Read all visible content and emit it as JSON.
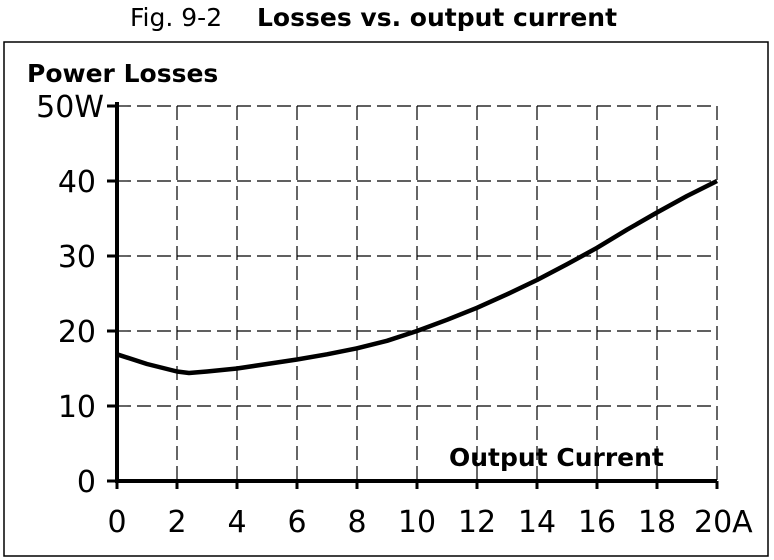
{
  "chart_data": {
    "type": "line",
    "title_prefix": "Fig. 9-2",
    "title": "Losses vs. output current",
    "ylabel": "Power Losses",
    "xlabel": "Output Current",
    "xlim": [
      0,
      20
    ],
    "ylim": [
      0,
      50
    ],
    "xticks": [
      "0",
      "2",
      "4",
      "6",
      "8",
      "10",
      "12",
      "14",
      "16",
      "18",
      "20A"
    ],
    "yticks": [
      "0",
      "10",
      "20",
      "30",
      "40",
      "50W"
    ],
    "grid": true,
    "series": [
      {
        "x": [
          0,
          1,
          2,
          2.4,
          3,
          4,
          5,
          6,
          7,
          8,
          9,
          10,
          11,
          12,
          13,
          14,
          15,
          16,
          17,
          18,
          19,
          20
        ],
        "y": [
          16.9,
          15.6,
          14.6,
          14.4,
          14.6,
          15.0,
          15.6,
          16.2,
          16.9,
          17.7,
          18.7,
          20.0,
          21.5,
          23.1,
          24.9,
          26.8,
          28.9,
          31.1,
          33.5,
          35.8,
          38.0,
          40.0
        ]
      }
    ]
  }
}
